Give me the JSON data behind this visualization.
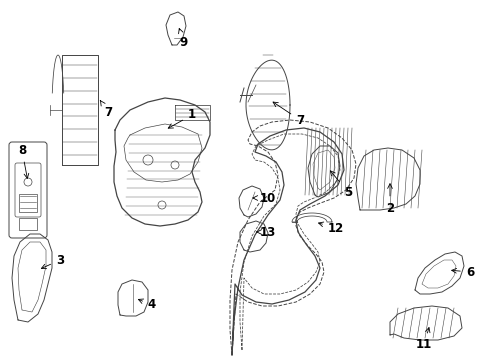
{
  "background": "#ffffff",
  "line_color": "#444444",
  "label_color": "#000000",
  "font_size": 8.5,
  "figsize": [
    4.89,
    3.6
  ],
  "dpi": 100
}
